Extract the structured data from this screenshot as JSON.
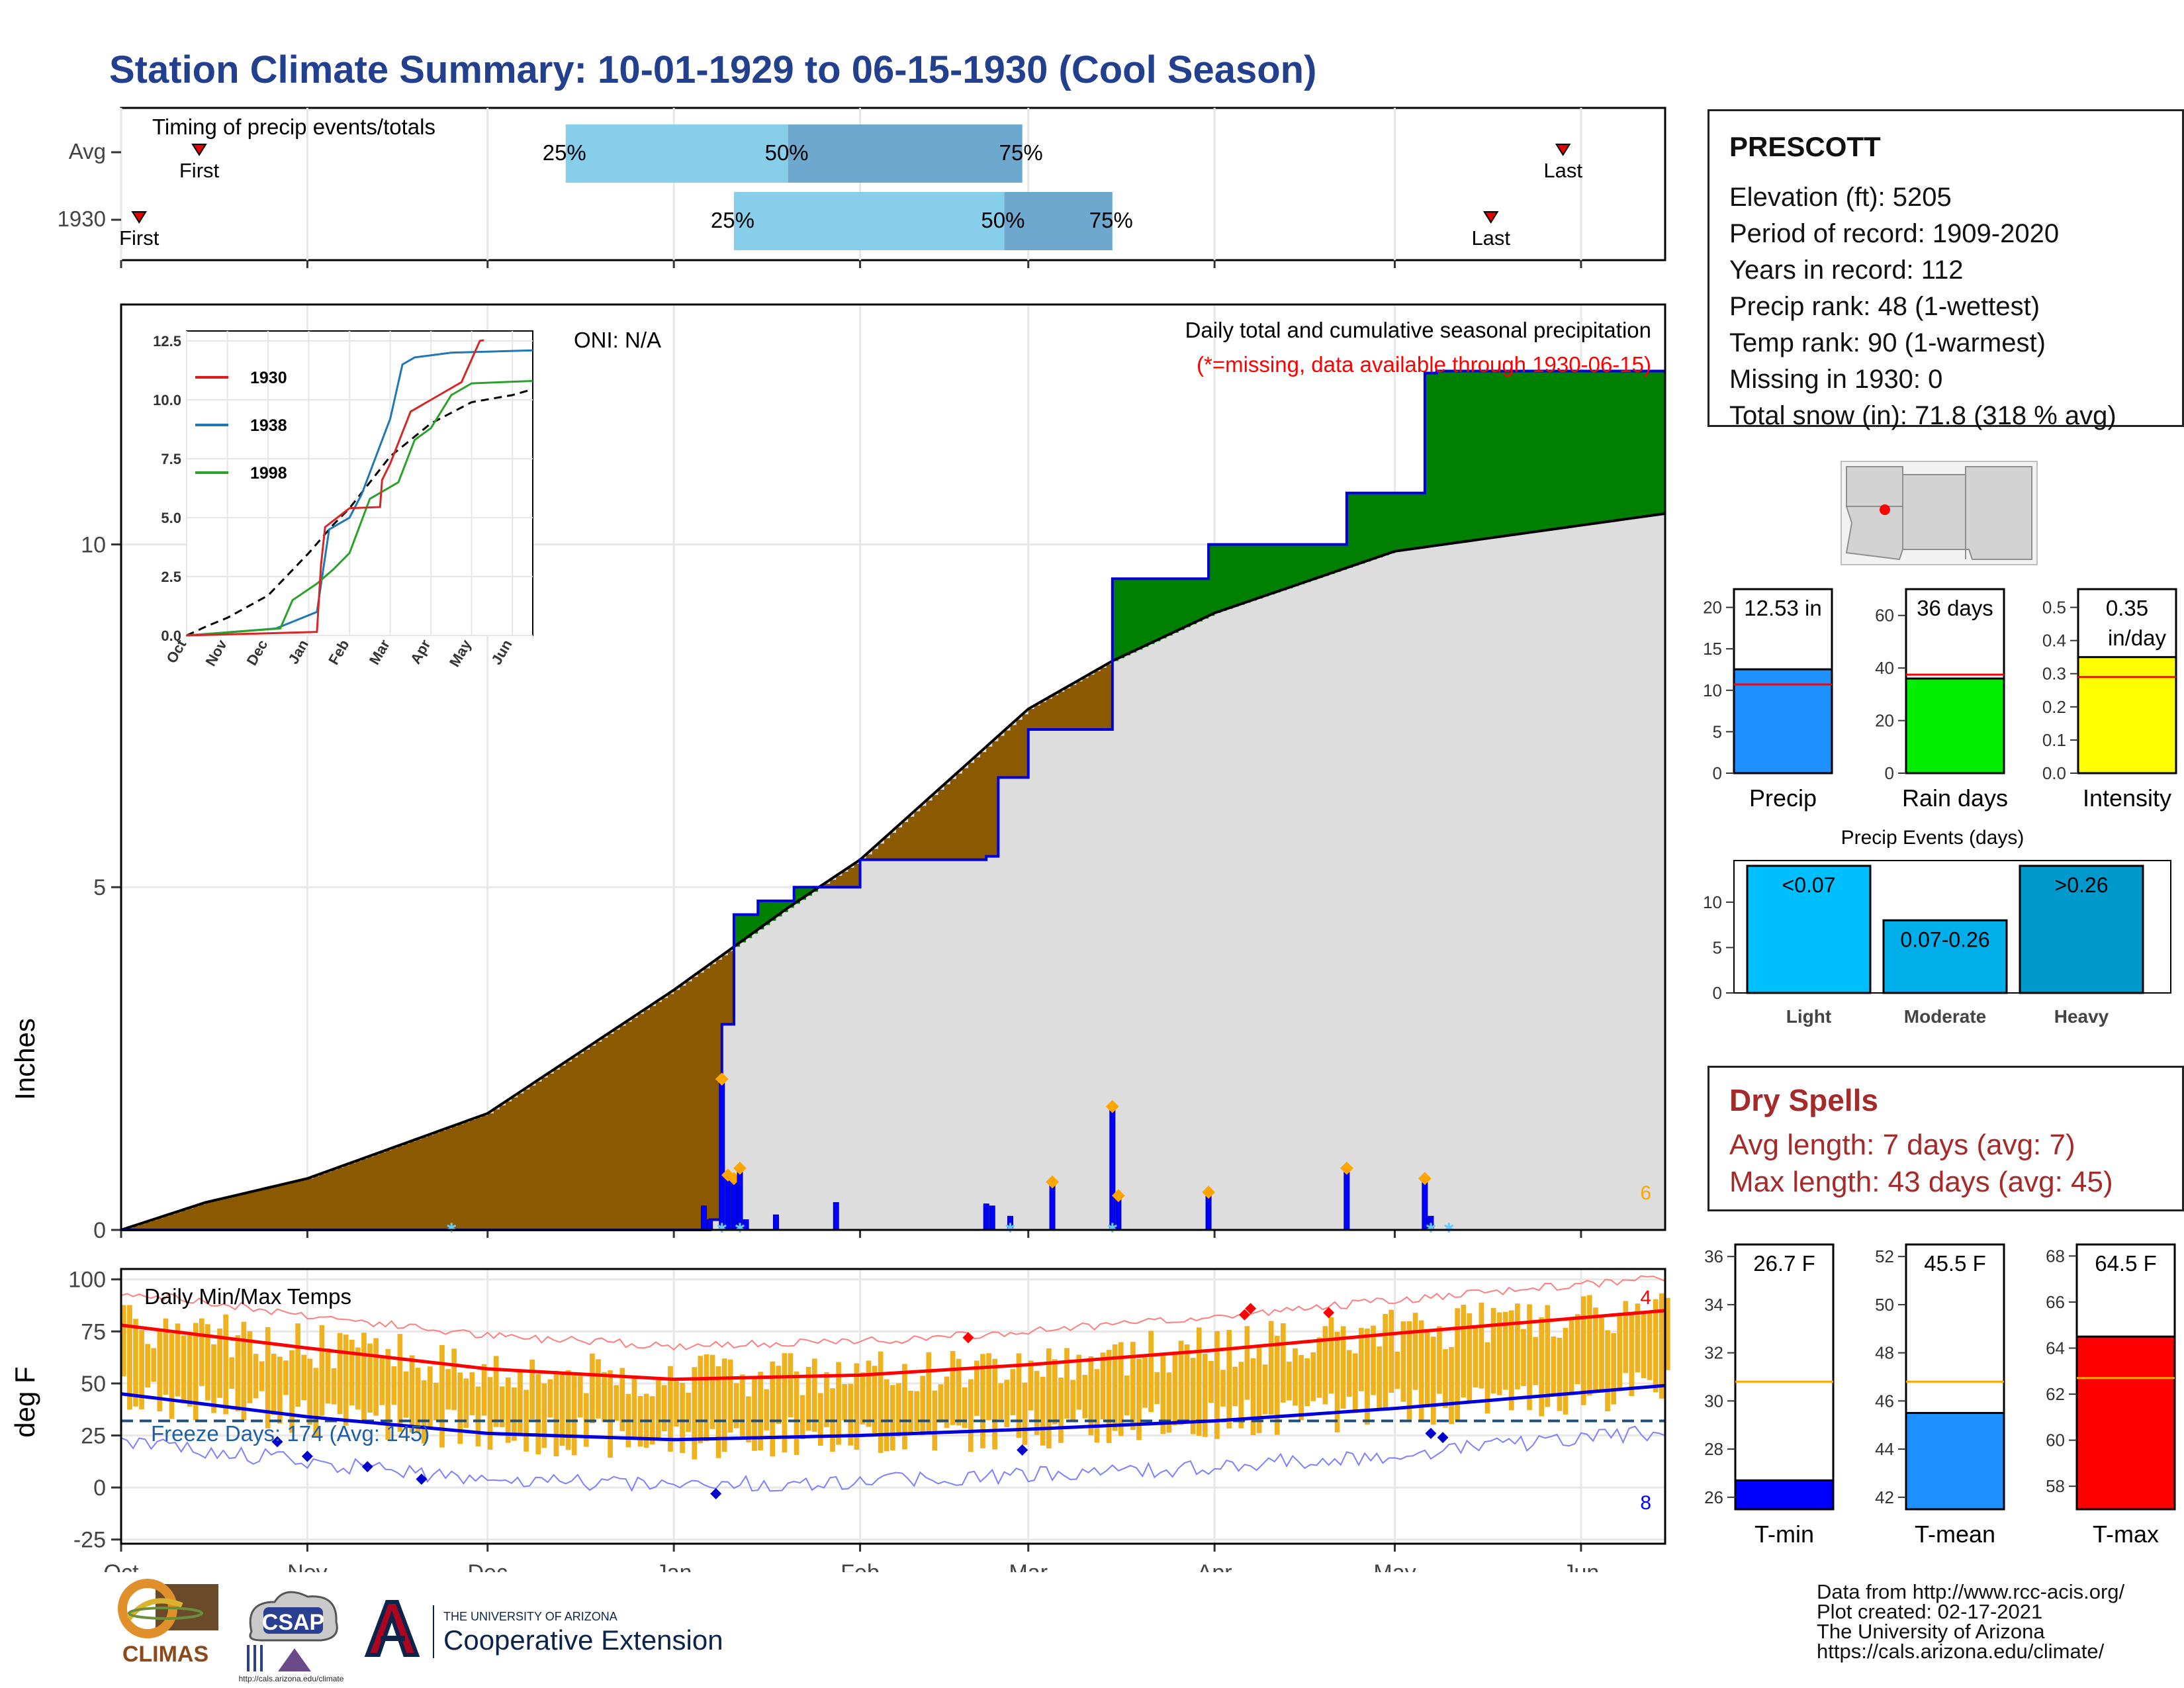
{
  "title": "Station Climate Summary: 10-01-1929 to 06-15-1930 (Cool Season)",
  "timing_panel": {
    "title": "Timing of precip events/totals",
    "rows": [
      {
        "label": "Avg",
        "first": "1929-10-14",
        "q25": "1929-12-14",
        "q50": "1930-01-20",
        "q75": "1930-02-28",
        "last": "1930-05-29",
        "first_label": "First",
        "last_label": "Last",
        "p25_label": "25%",
        "p50_label": "50%",
        "p75_label": "75%"
      },
      {
        "label": "1930",
        "first": "1929-10-04",
        "q25": "1930-01-11",
        "q50": "1930-02-25",
        "q75": "1930-03-15",
        "last": "1930-05-17",
        "first_label": "First",
        "last_label": "Last",
        "p25_label": "25%",
        "p50_label": "50%",
        "p75_label": "75%"
      }
    ]
  },
  "precip_panel": {
    "ylabel": "Inches",
    "oni": "ONI: N/A",
    "caption": "Daily total and cumulative seasonal precipitation",
    "missing_note": "(*=missing, data available through 1930-06-15)",
    "corner_count": "6"
  },
  "inset": {
    "legend": [
      "1930",
      "1938",
      "1998"
    ],
    "yticks": [
      "0.0",
      "2.5",
      "5.0",
      "7.5",
      "10.0",
      "12.5"
    ],
    "xticks": [
      "Oct",
      "Nov",
      "Dec",
      "Jan",
      "Feb",
      "Mar",
      "Apr",
      "May",
      "Jun"
    ]
  },
  "temp_panel": {
    "ylabel": "deg F",
    "title": "Daily Min/Max Temps",
    "freeze_text": "Freeze Days: 174 (Avg: 145)",
    "top_count": "4",
    "bottom_count": "8",
    "yticks": [
      "100",
      "75",
      "50",
      "25",
      "0",
      "-25"
    ]
  },
  "month_labels": [
    "Oct",
    "Nov",
    "Dec",
    "Jan",
    "Feb",
    "Mar",
    "Apr",
    "May",
    "Jun"
  ],
  "station": {
    "name": "PRESCOTT",
    "elevation": "Elevation (ft): 5205",
    "period": "Period of record: 1909-2020",
    "years": "Years in record: 112",
    "precip_rank": "Precip rank: 48 (1-wettest)",
    "temp_rank": "Temp rank: 90 (1-warmest)",
    "missing": "Missing in 1930: 0",
    "snow": "Total snow (in): 71.8 (318 % avg)"
  },
  "summary_bars": {
    "precip": {
      "label": "Precip",
      "value_text": "12.53 in",
      "value": 12.53,
      "avg": 10.7,
      "yticks": [
        "0",
        "5",
        "10",
        "15",
        "20"
      ],
      "color": "#1e90ff"
    },
    "rain_days": {
      "label": "Rain days",
      "value_text": "36 days",
      "value": 36,
      "avg": 37.5,
      "yticks": [
        "0",
        "20",
        "40",
        "60"
      ],
      "color": "#00ee00"
    },
    "intensity": {
      "label": "Intensity",
      "value_text": "0.35",
      "value_unit": "in/day",
      "value": 0.35,
      "avg": 0.29,
      "yticks": [
        "0.0",
        "0.1",
        "0.2",
        "0.3",
        "0.4",
        "0.5"
      ],
      "color": "#ffff00"
    }
  },
  "precip_events": {
    "title": "Precip Events (days)",
    "yticks": [
      "0",
      "5",
      "10"
    ],
    "bars": [
      {
        "label": "Light",
        "text": "<0.07",
        "value": 14,
        "color": "#00bfff"
      },
      {
        "label": "Moderate",
        "text": "0.07-0.26",
        "value": 8,
        "color": "#00aeea"
      },
      {
        "label": "Heavy",
        "text": ">0.26",
        "value": 14,
        "color": "#0099cc"
      }
    ]
  },
  "dry_spells": {
    "title": "Dry Spells",
    "avg_length": "Avg length: 7 days (avg: 7)",
    "max_length": "Max length: 43 days (avg: 45)"
  },
  "temp_bars": {
    "tmin": {
      "label": "T-min",
      "value_text": "26.7 F",
      "value": 26.7,
      "avg": 30.8,
      "yticks": [
        "26",
        "28",
        "30",
        "32",
        "34",
        "36"
      ],
      "color": "#0000ff"
    },
    "tmean": {
      "label": "T-mean",
      "value_text": "45.5 F",
      "value": 45.5,
      "avg": 46.8,
      "yticks": [
        "42",
        "44",
        "46",
        "48",
        "50",
        "52"
      ],
      "color": "#1e90ff"
    },
    "tmax": {
      "label": "T-max",
      "value_text": "64.5 F",
      "value": 64.5,
      "avg": 62.7,
      "yticks": [
        "58",
        "60",
        "62",
        "64",
        "66",
        "68"
      ],
      "color": "#ff0000"
    }
  },
  "credits": "Data from http://www.rcc-acis.org/\nPlot created: 02-17-2021\nThe University of Arizona\nhttps://cals.arizona.edu/climate/",
  "logos": {
    "climas": "CLIMAS",
    "csap": "CSAP",
    "csap_url": "http://cals.arizona.edu/climate",
    "ua_small": "THE UNIVERSITY OF ARIZONA",
    "ua_big": "Cooperative Extension"
  },
  "chart_data": [
    {
      "type": "area",
      "title": "Daily total and cumulative seasonal precipitation",
      "ylabel": "Inches",
      "ylim": [
        0,
        13.5
      ],
      "x_range": [
        "1929-10-01",
        "1930-06-15"
      ],
      "cumulative_1930": [
        {
          "date": "1929-10-01",
          "value": 0.0
        },
        {
          "date": "1930-01-07",
          "value": 0.15
        },
        {
          "date": "1930-01-09",
          "value": 3.0
        },
        {
          "date": "1930-01-11",
          "value": 4.6
        },
        {
          "date": "1930-01-15",
          "value": 4.8
        },
        {
          "date": "1930-01-21",
          "value": 5.0
        },
        {
          "date": "1930-02-01",
          "value": 5.4
        },
        {
          "date": "1930-02-22",
          "value": 5.45
        },
        {
          "date": "1930-02-24",
          "value": 6.6
        },
        {
          "date": "1930-03-01",
          "value": 7.3
        },
        {
          "date": "1930-03-15",
          "value": 9.5
        },
        {
          "date": "1930-03-31",
          "value": 10.0
        },
        {
          "date": "1930-04-23",
          "value": 10.75
        },
        {
          "date": "1930-05-06",
          "value": 12.5
        },
        {
          "date": "1930-05-08",
          "value": 12.53
        },
        {
          "date": "1930-06-15",
          "value": 12.53
        }
      ],
      "cumulative_avg": [
        {
          "date": "1929-10-01",
          "value": 0.0
        },
        {
          "date": "1929-10-15",
          "value": 0.4
        },
        {
          "date": "1929-11-01",
          "value": 0.75
        },
        {
          "date": "1929-12-01",
          "value": 1.7
        },
        {
          "date": "1930-01-01",
          "value": 3.5
        },
        {
          "date": "1930-01-20",
          "value": 4.7
        },
        {
          "date": "1930-02-01",
          "value": 5.4
        },
        {
          "date": "1930-03-01",
          "value": 7.6
        },
        {
          "date": "1930-03-15",
          "value": 8.3
        },
        {
          "date": "1930-04-01",
          "value": 9.0
        },
        {
          "date": "1930-05-01",
          "value": 9.9
        },
        {
          "date": "1930-06-15",
          "value": 10.45
        }
      ],
      "daily_precip_1930": [
        {
          "date": "1930-01-06",
          "value": 0.35
        },
        {
          "date": "1930-01-07",
          "value": 0.15
        },
        {
          "date": "1930-01-09",
          "value": 2.2
        },
        {
          "date": "1930-01-10",
          "value": 0.8
        },
        {
          "date": "1930-01-11",
          "value": 0.75
        },
        {
          "date": "1930-01-12",
          "value": 0.9
        },
        {
          "date": "1930-01-13",
          "value": 0.15
        },
        {
          "date": "1930-01-18",
          "value": 0.22
        },
        {
          "date": "1930-01-28",
          "value": 0.4
        },
        {
          "date": "1930-02-22",
          "value": 0.38
        },
        {
          "date": "1930-02-23",
          "value": 0.35
        },
        {
          "date": "1930-02-26",
          "value": 0.2
        },
        {
          "date": "1930-03-05",
          "value": 0.7
        },
        {
          "date": "1930-03-15",
          "value": 1.8
        },
        {
          "date": "1930-03-16",
          "value": 0.5
        },
        {
          "date": "1930-03-31",
          "value": 0.55
        },
        {
          "date": "1930-04-23",
          "value": 0.9
        },
        {
          "date": "1930-05-06",
          "value": 0.75
        },
        {
          "date": "1930-05-07",
          "value": 0.2
        }
      ]
    },
    {
      "type": "line",
      "title": "Daily Min/Max Temps",
      "ylabel": "deg F",
      "ylim": [
        -27,
        105
      ],
      "freeze_line": 32,
      "avg_max": [
        {
          "date": "1929-10-01",
          "value": 78
        },
        {
          "date": "1929-11-01",
          "value": 67
        },
        {
          "date": "1929-12-01",
          "value": 57
        },
        {
          "date": "1930-01-01",
          "value": 52
        },
        {
          "date": "1930-02-01",
          "value": 54
        },
        {
          "date": "1930-03-01",
          "value": 59
        },
        {
          "date": "1930-04-01",
          "value": 66
        },
        {
          "date": "1930-05-01",
          "value": 74
        },
        {
          "date": "1930-06-15",
          "value": 85
        }
      ],
      "avg_min": [
        {
          "date": "1929-10-01",
          "value": 45
        },
        {
          "date": "1929-11-01",
          "value": 34
        },
        {
          "date": "1929-12-01",
          "value": 26
        },
        {
          "date": "1930-01-01",
          "value": 23
        },
        {
          "date": "1930-02-01",
          "value": 25
        },
        {
          "date": "1930-03-01",
          "value": 28
        },
        {
          "date": "1930-04-01",
          "value": 32
        },
        {
          "date": "1930-05-01",
          "value": 38
        },
        {
          "date": "1930-06-15",
          "value": 49
        }
      ]
    },
    {
      "type": "bar",
      "title": "Precip",
      "categories": [
        "Precip"
      ],
      "values": [
        12.53
      ],
      "ylim": [
        0,
        22
      ]
    },
    {
      "type": "bar",
      "title": "Rain days",
      "categories": [
        "Rain days"
      ],
      "values": [
        36
      ],
      "ylim": [
        0,
        70
      ]
    },
    {
      "type": "bar",
      "title": "Intensity",
      "categories": [
        "Intensity"
      ],
      "values": [
        0.35
      ],
      "ylim": [
        0,
        0.55
      ]
    },
    {
      "type": "bar",
      "title": "Precip Events (days)",
      "categories": [
        "Light",
        "Moderate",
        "Heavy"
      ],
      "values": [
        14,
        8,
        14
      ],
      "ylim": [
        0,
        14
      ]
    },
    {
      "type": "bar",
      "title": "T-min",
      "categories": [
        "T-min"
      ],
      "values": [
        26.7
      ],
      "ylim": [
        25.5,
        36.5
      ]
    },
    {
      "type": "bar",
      "title": "T-mean",
      "categories": [
        "T-mean"
      ],
      "values": [
        45.5
      ],
      "ylim": [
        41.5,
        52.5
      ]
    },
    {
      "type": "bar",
      "title": "T-max",
      "categories": [
        "T-max"
      ],
      "values": [
        64.5
      ],
      "ylim": [
        57,
        68.5
      ]
    }
  ]
}
